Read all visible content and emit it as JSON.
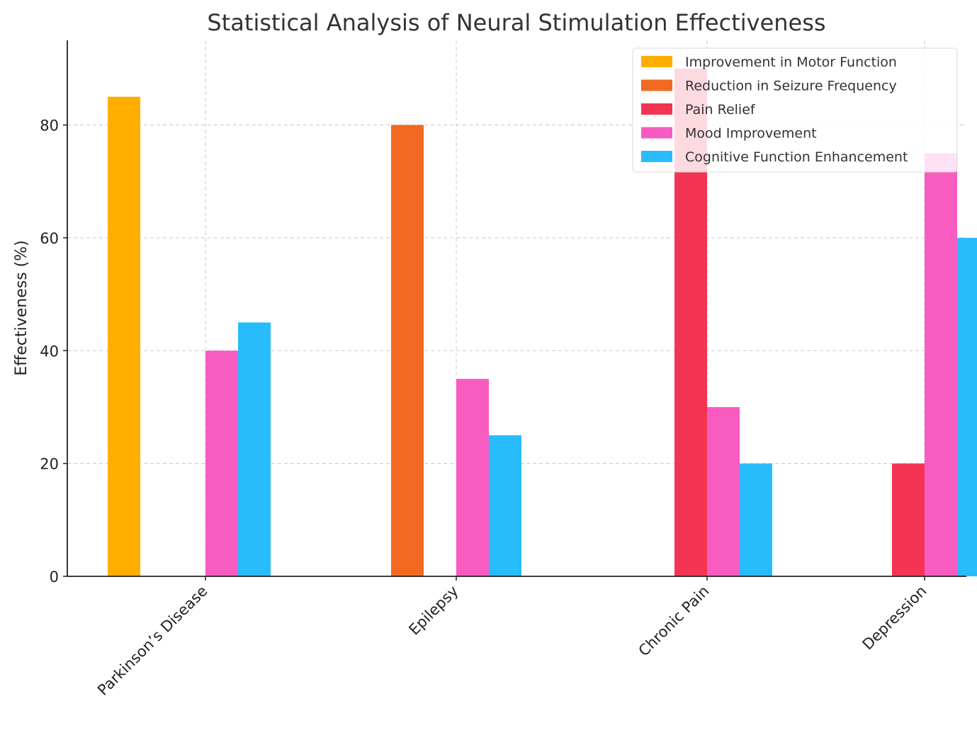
{
  "chart_data": {
    "type": "bar",
    "title": "Statistical Analysis of Neural Stimulation Effectiveness",
    "xlabel": "",
    "ylabel": "Effectiveness (%)",
    "ylim": [
      0,
      95
    ],
    "yticks": [
      0,
      20,
      40,
      60,
      80
    ],
    "grid": true,
    "legend_position": "top-right",
    "categories": [
      "Parkinson’s Disease",
      "Epilepsy",
      "Chronic Pain",
      "Depression"
    ],
    "series": [
      {
        "name": "Improvement in Motor Function",
        "color": "#FFAE00",
        "values": [
          85,
          0,
          0,
          0
        ]
      },
      {
        "name": "Reduction in Seizure Frequency",
        "color": "#F26922",
        "values": [
          0,
          80,
          0,
          0
        ]
      },
      {
        "name": "Pain Relief",
        "color": "#F43453",
        "values": [
          0,
          0,
          90,
          20
        ]
      },
      {
        "name": "Mood Improvement",
        "color": "#F95CC0",
        "values": [
          40,
          35,
          30,
          75
        ]
      },
      {
        "name": "Cognitive Function Enhancement",
        "color": "#29BCFC",
        "values": [
          45,
          25,
          20,
          60
        ]
      }
    ]
  }
}
